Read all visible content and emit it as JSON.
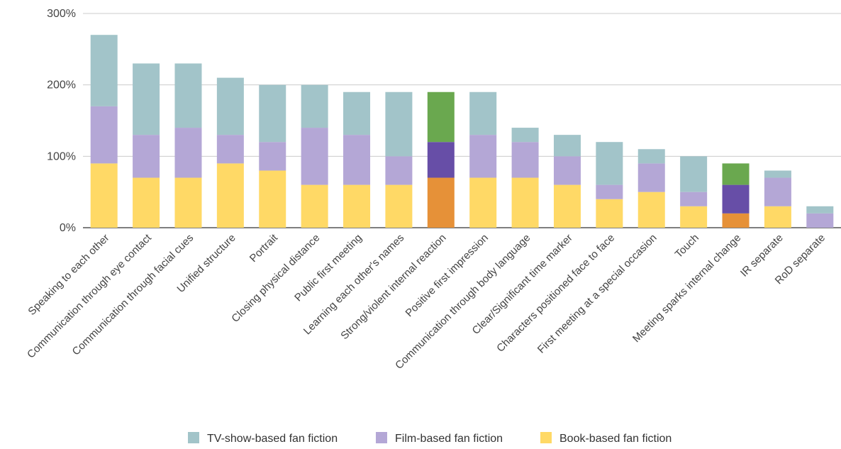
{
  "chart_data": {
    "type": "bar",
    "stacked": true,
    "categories": [
      "Speaking to each other",
      "Communication through eye contact",
      "Communication through facial cues",
      "Unified structure",
      "Portrait",
      "Closing physical distance",
      "Public first meeting",
      "Learning each other's names",
      "Strong/violent internal reaction",
      "Positive first impression",
      "Communication through body language",
      "Clear/Significant time marker",
      "Characters positioned face to face",
      "First meeting at a special occasion",
      "Touch",
      "Meeting sparks internal change",
      "IR separate",
      "RoD separate"
    ],
    "series": [
      {
        "name": "Book-based fan fiction",
        "values": [
          90,
          70,
          70,
          90,
          80,
          60,
          60,
          60,
          70,
          70,
          70,
          60,
          40,
          50,
          30,
          20,
          30,
          0
        ]
      },
      {
        "name": "Film-based fan fiction",
        "values": [
          80,
          60,
          70,
          40,
          40,
          80,
          70,
          40,
          50,
          60,
          50,
          40,
          20,
          40,
          20,
          40,
          40,
          20
        ]
      },
      {
        "name": "TV-show-based fan fiction",
        "values": [
          100,
          100,
          90,
          80,
          80,
          60,
          60,
          90,
          70,
          60,
          20,
          30,
          60,
          20,
          50,
          30,
          10,
          10
        ]
      }
    ],
    "highlight_categories": [
      "Strong/violent internal reaction",
      "Meeting sparks internal change"
    ],
    "y_ticks": [
      "0%",
      "100%",
      "200%",
      "300%"
    ],
    "ylim": [
      0,
      300
    ],
    "grid": true,
    "legend_position": "bottom-center",
    "legend": [
      "TV-show-based fan fiction",
      "Film-based fan fiction",
      "Book-based fan fiction"
    ],
    "colors": {
      "TV-show-based fan fiction": "#a2c4c9",
      "Film-based fan fiction": "#b4a7d6",
      "Book-based fan fiction": "#ffd966"
    },
    "highlight_colors": {
      "TV-show-based fan fiction": "#6aa84f",
      "Film-based fan fiction": "#674ea7",
      "Book-based fan fiction": "#e69138"
    }
  }
}
